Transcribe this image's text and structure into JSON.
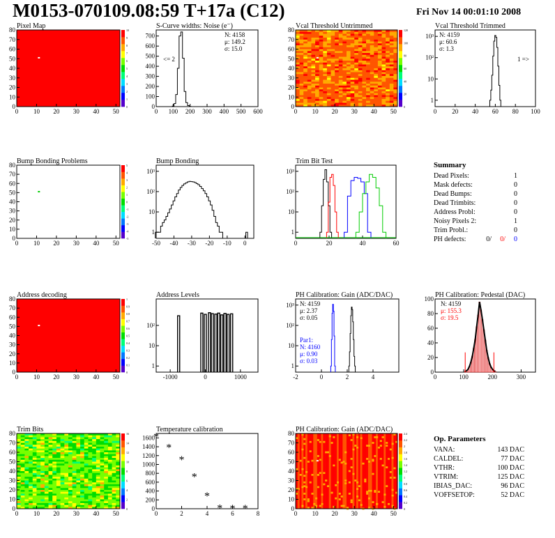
{
  "header": {
    "title": "M0153-070109.08:59 T+17a (C12)",
    "date": "Fri Nov 14 00:01:10 2008"
  },
  "colors": {
    "palette": [
      "#5500cc",
      "#0000ff",
      "#0077ff",
      "#00ddff",
      "#00ff77",
      "#00dd00",
      "#77ff00",
      "#ffff00",
      "#ffaa00",
      "#ff5500",
      "#ff0000"
    ],
    "series_black": "#000000",
    "series_red": "#ff0000",
    "series_blue": "#0000ff",
    "series_green": "#00cc00"
  },
  "chart_data": [
    {
      "id": "pixelmap",
      "type": "heatmap",
      "title": "Pixel Map",
      "xlim": [
        0,
        52
      ],
      "ylim": [
        0,
        80
      ],
      "xticks": [
        "0",
        "10",
        "20",
        "30",
        "40",
        "50"
      ],
      "yticks": [
        "0",
        "10",
        "20",
        "30",
        "40",
        "50",
        "60",
        "70",
        "80"
      ],
      "zlim": [
        0,
        10
      ],
      "zticks": [
        "0",
        "1",
        "2",
        "3",
        "4",
        "5",
        "6",
        "7",
        "8",
        "9",
        "10"
      ],
      "fill_value": 10,
      "special_pixels": [
        {
          "col": 11,
          "row": 51,
          "value": 0,
          "color": "#ffffff"
        }
      ]
    },
    {
      "id": "scurve",
      "type": "bar",
      "title": "S-Curve widths: Noise (e⁻)",
      "xlim": [
        0,
        600
      ],
      "ylim": [
        0,
        760
      ],
      "xticks": [
        "0",
        "100",
        "200",
        "300",
        "400",
        "500",
        "600"
      ],
      "yticks": [
        "0",
        "100",
        "200",
        "300",
        "400",
        "500",
        "600",
        "700"
      ],
      "stats": [
        "N: 4158",
        "μ: 149.2",
        "σ: 15.0"
      ],
      "annotation": "<= 2",
      "x": [
        100,
        110,
        120,
        130,
        140,
        150,
        160,
        170,
        180,
        190,
        200
      ],
      "values": [
        5,
        30,
        120,
        380,
        700,
        740,
        480,
        150,
        40,
        10,
        2
      ]
    },
    {
      "id": "vcal_untrimmed",
      "type": "heatmap",
      "title": "Vcal Threshold Untrimmed",
      "xlim": [
        0,
        52
      ],
      "ylim": [
        0,
        80
      ],
      "xticks": [
        "0",
        "10",
        "20",
        "30",
        "40",
        "50"
      ],
      "yticks": [
        "0",
        "10",
        "20",
        "30",
        "40",
        "50",
        "60",
        "70",
        "80"
      ],
      "zticks": [
        "0",
        "20",
        "40",
        "60",
        "80",
        "100",
        "120"
      ],
      "special_pixels": [
        {
          "col": 11,
          "row": 51,
          "value": 0,
          "color": "#ffffff"
        }
      ]
    },
    {
      "id": "vcal_trimmed",
      "type": "line",
      "title": "Vcal Threshold Trimmed",
      "log_y": true,
      "xlim": [
        0,
        100
      ],
      "ylim": [
        0.5,
        2000
      ],
      "xticks": [
        "0",
        "20",
        "40",
        "60",
        "80",
        "100"
      ],
      "yticks": [
        "1",
        "10",
        "10²",
        "10³"
      ],
      "stats": [
        "N: 4159",
        "μ: 60.6",
        "σ:  1.3"
      ],
      "annotation": "1 =>",
      "x": [
        55,
        56,
        57,
        58,
        59,
        60,
        61,
        62,
        63,
        64,
        65
      ],
      "values": [
        1,
        3,
        15,
        120,
        600,
        1100,
        900,
        300,
        40,
        5,
        1
      ]
    },
    {
      "id": "bump_problems",
      "type": "heatmap",
      "title": "Bump Bonding Problems",
      "xlim": [
        0,
        52
      ],
      "ylim": [
        0,
        80
      ],
      "xticks": [
        "0",
        "10",
        "20",
        "30",
        "40",
        "50"
      ],
      "yticks": [
        "0",
        "10",
        "20",
        "30",
        "40",
        "50",
        "60",
        "70",
        "80"
      ],
      "zticks": [
        "-5",
        "-4",
        "-3",
        "-2",
        "-1",
        "0",
        "1",
        "2",
        "3",
        "4",
        "5"
      ],
      "fill_value": null,
      "special_pixels": [
        {
          "col": 11,
          "row": 51,
          "value": 1,
          "color": "#00cc00"
        }
      ]
    },
    {
      "id": "bump_bonding",
      "type": "line",
      "title": "Bump Bonding",
      "log_y": true,
      "xlim": [
        -50,
        5
      ],
      "ylim": [
        0.5,
        2000
      ],
      "xticks": [
        "-50",
        "-40",
        "-30",
        "-20",
        "-10",
        "0"
      ],
      "yticks": [
        "1",
        "10",
        "10²",
        "10³"
      ],
      "x": [
        -50,
        -49,
        -48,
        -47,
        -46,
        -45,
        -44,
        -43,
        -42,
        -41,
        -40,
        -39,
        -38,
        -37,
        -36,
        -35,
        -34,
        -33,
        -32,
        -31,
        -30,
        -29,
        -28,
        -27,
        -26,
        -25,
        -24,
        -23,
        -22,
        -21,
        -20,
        -19,
        -18,
        -17,
        -16,
        -15,
        -14,
        -13
      ],
      "values": [
        1,
        1,
        1,
        2,
        3,
        4,
        6,
        9,
        14,
        22,
        35,
        55,
        80,
        120,
        160,
        200,
        240,
        270,
        300,
        320,
        310,
        300,
        280,
        250,
        220,
        180,
        140,
        110,
        80,
        55,
        35,
        22,
        12,
        6,
        3,
        2,
        1,
        1
      ],
      "extra_bins": [
        {
          "x": 1,
          "value": 1
        }
      ]
    },
    {
      "id": "trim_bit",
      "type": "line",
      "title": "Trim Bit Test",
      "log_y": true,
      "xlim": [
        0,
        60
      ],
      "ylim": [
        0.5,
        2000
      ],
      "xticks": [
        "0",
        "20",
        "40",
        "60"
      ],
      "yticks": [
        "1",
        "10",
        "10²",
        "10³"
      ],
      "series": [
        {
          "name": "",
          "color": "#000000",
          "x": [
            15,
            16,
            17,
            18,
            19,
            20,
            21
          ],
          "values": [
            1,
            20,
            400,
            1200,
            300,
            20,
            1
          ]
        },
        {
          "name": "",
          "color": "#ff0000",
          "x": [
            19,
            20,
            21,
            22,
            23,
            24,
            25
          ],
          "values": [
            1,
            30,
            500,
            700,
            200,
            10,
            1
          ]
        },
        {
          "name": "",
          "color": "#0000ff",
          "x": [
            30,
            32,
            34,
            36,
            38,
            40,
            42,
            44
          ],
          "values": [
            1,
            60,
            350,
            500,
            450,
            300,
            80,
            1
          ]
        },
        {
          "name": "",
          "color": "#00cc00",
          "x": [
            37,
            39,
            41,
            43,
            45,
            47,
            49,
            51,
            53
          ],
          "values": [
            1,
            10,
            80,
            300,
            700,
            500,
            150,
            20,
            1
          ]
        }
      ]
    },
    {
      "id": "addr_decoding",
      "type": "heatmap",
      "title": "Address decoding",
      "xlim": [
        0,
        52
      ],
      "ylim": [
        0,
        80
      ],
      "xticks": [
        "0",
        "10",
        "20",
        "30",
        "40",
        "50"
      ],
      "yticks": [
        "0",
        "10",
        "20",
        "30",
        "40",
        "50",
        "60",
        "70",
        "80"
      ],
      "zticks": [
        "0",
        "0.1",
        "0.2",
        "0.3",
        "0.4",
        "0.5",
        "0.6",
        "0.7",
        "0.8",
        "0.9",
        "1"
      ],
      "fill_value": 1,
      "special_pixels": [
        {
          "col": 11,
          "row": 51,
          "value": 0,
          "color": "#ffffff"
        }
      ]
    },
    {
      "id": "addr_levels",
      "type": "line",
      "title": "Address Levels",
      "log_y": true,
      "xlim": [
        -1400,
        1500
      ],
      "ylim": [
        0.5,
        2000
      ],
      "xticks": [
        "-1000",
        "0",
        "1000"
      ],
      "yticks": [
        "1",
        "10",
        "10²"
      ],
      "x": [
        -760,
        -100,
        0,
        120,
        200,
        300,
        380,
        470,
        560,
        650,
        750
      ],
      "values": [
        300,
        400,
        350,
        420,
        380,
        360,
        400,
        330,
        390,
        350,
        370
      ]
    },
    {
      "id": "ph_gain",
      "type": "line",
      "title": "PH Calibration: Gain (ADC/DAC)",
      "log_y": true,
      "xlim": [
        -2,
        6
      ],
      "ylim": [
        0.5,
        2000
      ],
      "xticks": [
        "-2",
        "0",
        "2",
        "4"
      ],
      "yticks": [
        "1",
        "10",
        "10²",
        "10³"
      ],
      "stats": [
        "N: 4159",
        "μ: 2.37",
        "σ: 0.05"
      ],
      "stats2": [
        "Par1:",
        "N: 4160",
        "μ: 0.90",
        "σ: 0.03"
      ],
      "series": [
        {
          "name": "",
          "color": "#000000",
          "x": [
            2.15,
            2.2,
            2.25,
            2.3,
            2.35,
            2.4,
            2.45,
            2.5,
            2.55,
            2.6
          ],
          "values": [
            1,
            5,
            40,
            300,
            800,
            600,
            150,
            20,
            3,
            1
          ]
        },
        {
          "name": "",
          "color": "#0000ff",
          "x": [
            0.75,
            0.8,
            0.85,
            0.9,
            0.95,
            1.0,
            1.05
          ],
          "values": [
            1,
            20,
            400,
            1100,
            500,
            30,
            1
          ]
        }
      ]
    },
    {
      "id": "ph_pedestal",
      "type": "bar",
      "title": "PH Calibration: Pedestal (DAC)",
      "xlim": [
        0,
        350
      ],
      "ylim": [
        0,
        100
      ],
      "xticks": [
        "0",
        "100",
        "200",
        "300"
      ],
      "yticks": [
        "0",
        "20",
        "40",
        "60",
        "80",
        "100"
      ],
      "stats": [
        "N: 4159",
        "μ: 155.3",
        "σ: 19.5"
      ],
      "x": [
        105,
        110,
        115,
        120,
        125,
        130,
        135,
        140,
        145,
        150,
        155,
        160,
        165,
        170,
        175,
        180,
        185,
        190,
        195,
        200,
        205,
        210
      ],
      "values": [
        1,
        2,
        4,
        8,
        14,
        22,
        33,
        45,
        62,
        78,
        96,
        85,
        72,
        58,
        44,
        30,
        20,
        12,
        7,
        4,
        2,
        1
      ],
      "markers": [
        {
          "x": 105,
          "value": 27
        },
        {
          "x": 205,
          "value": 27
        }
      ]
    },
    {
      "id": "trim_bits",
      "type": "heatmap",
      "title": "Trim Bits",
      "xlim": [
        0,
        52
      ],
      "ylim": [
        0,
        80
      ],
      "xticks": [
        "0",
        "10",
        "20",
        "30",
        "40",
        "50"
      ],
      "yticks": [
        "0",
        "10",
        "20",
        "30",
        "40",
        "50",
        "60",
        "70",
        "80"
      ],
      "zticks": [
        "0",
        "2",
        "4",
        "6",
        "8",
        "10",
        "12",
        "14",
        "16"
      ]
    },
    {
      "id": "temperature",
      "type": "scatter",
      "title": "Temperature calibration",
      "xlim": [
        0,
        8
      ],
      "ylim": [
        0,
        1700
      ],
      "xticks": [
        "0",
        "2",
        "4",
        "6",
        "8"
      ],
      "yticks": [
        "0",
        "200",
        "400",
        "600",
        "800",
        "1000",
        "1200",
        "1400",
        "1600"
      ],
      "x": [
        0,
        1,
        2,
        3,
        4,
        5,
        6,
        7
      ],
      "values": [
        1620,
        1380,
        1100,
        720,
        280,
        10,
        0,
        0
      ]
    },
    {
      "id": "ph_gain_map",
      "type": "heatmap",
      "title": "PH Calibration: Gain (ADC/DAC)",
      "xlim": [
        0,
        52
      ],
      "ylim": [
        0,
        80
      ],
      "xticks": [
        "0",
        "10",
        "20",
        "30",
        "40",
        "50"
      ],
      "yticks": [
        "0",
        "10",
        "20",
        "30",
        "40",
        "50",
        "60",
        "70",
        "80"
      ],
      "zticks": [
        "0",
        "0.2",
        "0.4",
        "0.6",
        "0.8",
        "1",
        "1.2",
        "1.4",
        "1.6",
        "1.8",
        "2",
        "2.2",
        "2.4"
      ],
      "special_pixels": [
        {
          "col": 11,
          "row": 51,
          "value": 0,
          "color": "#ffffff"
        }
      ]
    }
  ],
  "summary": {
    "title": "Summary",
    "rows": [
      {
        "label": "Dead Pixels:",
        "value": "1"
      },
      {
        "label": "Mask defects:",
        "value": "0"
      },
      {
        "label": "Dead Bumps:",
        "value": "0"
      },
      {
        "label": "Dead Trimbits:",
        "value": "0"
      },
      {
        "label": "Address Probl:",
        "value": "0"
      },
      {
        "label": "Noisy Pixels 2:",
        "value": "1"
      },
      {
        "label": "Trim Probl.:",
        "value": "0"
      }
    ],
    "ph_label": "PH defects:",
    "ph_values": [
      {
        "v": "0/",
        "color": "#000000"
      },
      {
        "v": "0/",
        "color": "#ff0000"
      },
      {
        "v": "0",
        "color": "#0000ff"
      }
    ]
  },
  "op_params": {
    "title": "Op. Parameters",
    "rows": [
      {
        "label": "VANA:",
        "value": "143 DAC"
      },
      {
        "label": "CALDEL:",
        "value": "77 DAC"
      },
      {
        "label": "VTHR:",
        "value": "100 DAC"
      },
      {
        "label": "VTRIM:",
        "value": "125 DAC"
      },
      {
        "label": "IBIAS_DAC:",
        "value": "96 DAC"
      },
      {
        "label": "VOFFSETOP:",
        "value": "52 DAC"
      }
    ]
  }
}
